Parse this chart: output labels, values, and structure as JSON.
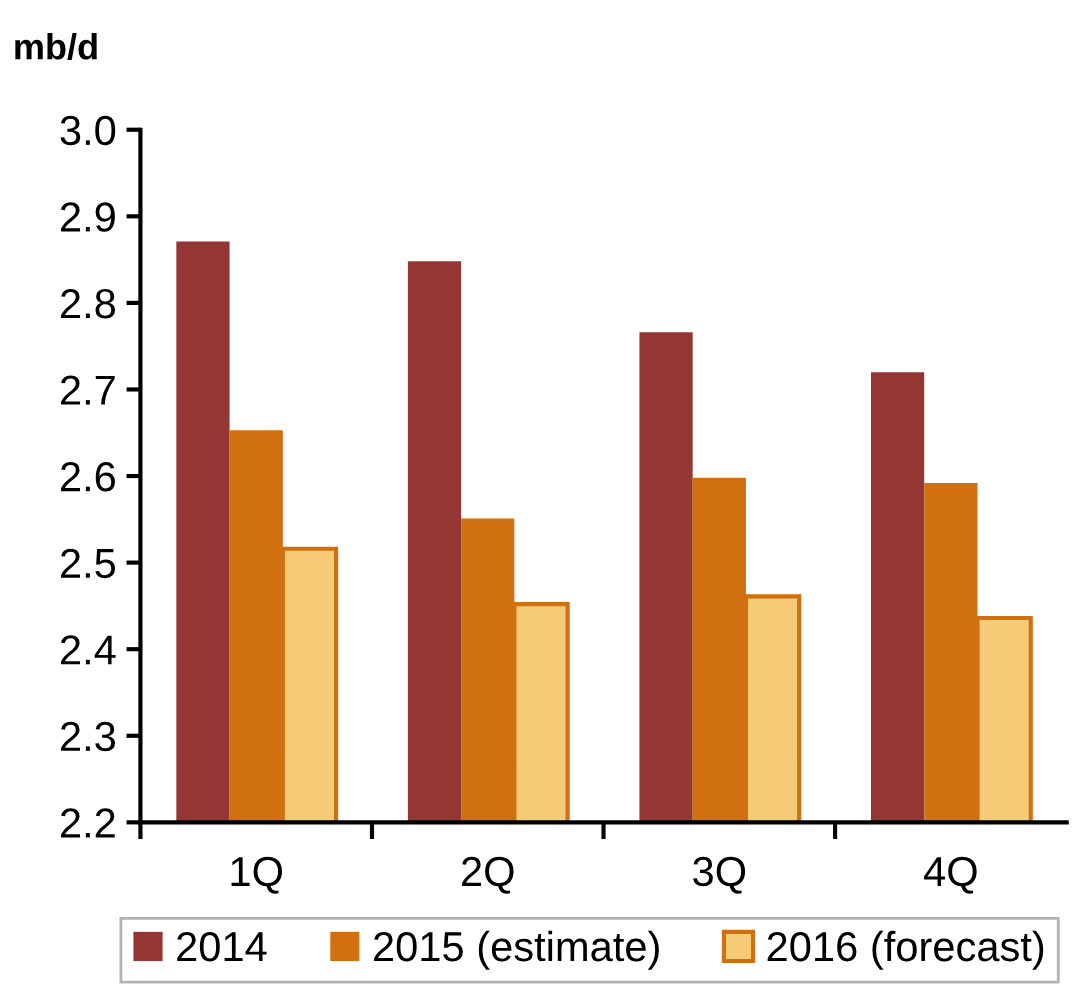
{
  "chart_data": {
    "type": "bar",
    "ylabel": "mb/d",
    "categories": [
      "1Q",
      "2Q",
      "3Q",
      "4Q"
    ],
    "series": [
      {
        "name": "2014",
        "color": "#943634",
        "values": [
          2.871,
          2.848,
          2.766,
          2.72
        ]
      },
      {
        "name": "2015 (estimate)",
        "color": "#d07010",
        "values": [
          2.653,
          2.551,
          2.598,
          2.592
        ]
      },
      {
        "name": "2016 (forecast)",
        "color": "#f5cb78",
        "values": [
          2.516,
          2.452,
          2.461,
          2.436
        ]
      }
    ],
    "ylim": [
      2.2,
      3.0
    ],
    "yticks": [
      2.2,
      2.3,
      2.4,
      2.5,
      2.6,
      2.7,
      2.8,
      2.9,
      {
        "value": 3.0,
        "label": "3.0"
      }
    ],
    "grid": false,
    "legend": "bottom"
  }
}
